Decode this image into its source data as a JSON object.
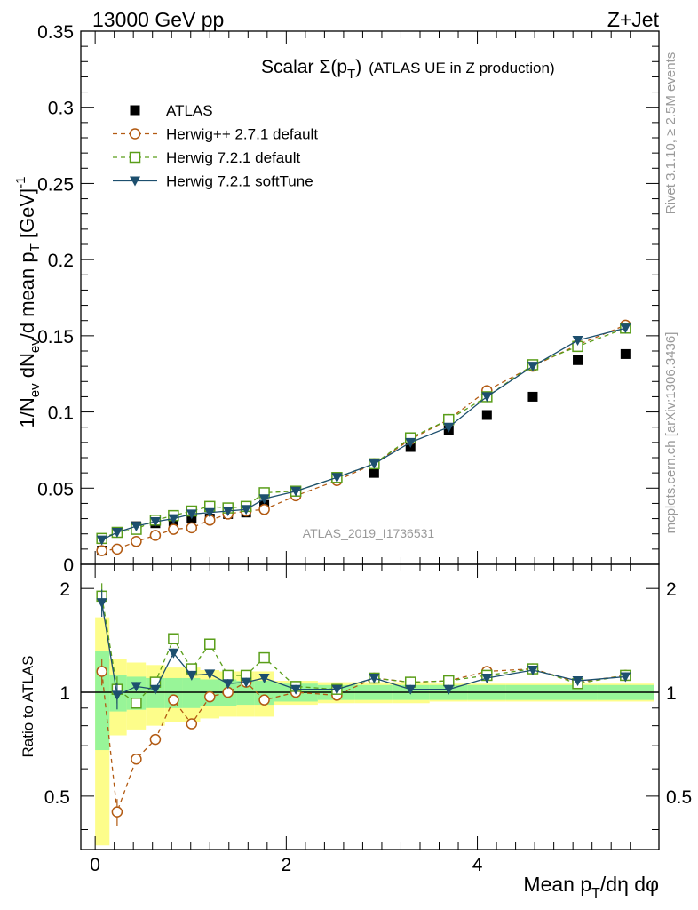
{
  "header": {
    "energy_label": "13000 GeV pp",
    "process_label": "Z+Jet"
  },
  "side_labels": {
    "rivet": "Rivet 3.1.10, ≥ 2.5M events",
    "mcplots": "mcplots.cern.ch [arXiv:1306.3436]"
  },
  "analysis_id": "ATLAS_2019_I1736531",
  "chart_data": {
    "type": "scatter",
    "title": "Scalar Σ(p_T) (ATLAS UE in Z production)",
    "xlabel": "Mean p_T/dη dφ",
    "ylabel": "1/N_ev dN_ev/d mean p_T [GeV]^-1",
    "ratio_ylabel": "Ratio to ATLAS",
    "xlim": [
      -0.15,
      5.9
    ],
    "ylim": [
      0,
      0.35
    ],
    "ratio_ylim": [
      0.35,
      2.35
    ],
    "x_ticks": [
      0,
      2,
      4
    ],
    "y_ticks": [
      0,
      0.05,
      0.1,
      0.15,
      0.2,
      0.25,
      0.3,
      0.35
    ],
    "y_tick_labels": [
      "0",
      "0.05",
      "0.1",
      "0.15",
      "0.2",
      "0.25",
      "0.3",
      "0.35"
    ],
    "ratio_ticks": [
      0.5,
      1,
      2
    ],
    "ratio_tick_labels": [
      "0.5",
      "1",
      "2"
    ],
    "legend_position": "top-left",
    "x": [
      0.07,
      0.23,
      0.43,
      0.63,
      0.82,
      1.01,
      1.2,
      1.39,
      1.58,
      1.77,
      2.1,
      2.53,
      2.92,
      3.3,
      3.7,
      4.1,
      4.58,
      5.05,
      5.55
    ],
    "series": [
      {
        "name": "ATLAS",
        "style": "data",
        "color": "#000000",
        "values": [
          0.009,
          0.021,
          0.025,
          0.027,
          0.028,
          0.03,
          0.03,
          0.033,
          0.034,
          0.039,
          0.046,
          0.057,
          0.06,
          0.077,
          0.088,
          0.098,
          0.11,
          0.134,
          0.138
        ],
        "ratio": [
          1,
          1,
          1,
          1,
          1,
          1,
          1,
          1,
          1,
          1,
          1,
          1,
          1,
          1,
          1,
          1,
          1,
          1,
          1
        ]
      },
      {
        "name": "Herwig++ 2.7.1 default",
        "style": "circle-dashed",
        "color": "#b25a12",
        "values": [
          0.009,
          0.01,
          0.015,
          0.019,
          0.023,
          0.024,
          0.029,
          0.033,
          0.035,
          0.036,
          0.045,
          0.055,
          0.066,
          0.082,
          0.095,
          0.114,
          0.13,
          0.144,
          0.157
        ],
        "ratio": [
          1.15,
          0.45,
          0.64,
          0.73,
          0.95,
          0.81,
          0.97,
          1.0,
          1.07,
          0.95,
          1.0,
          0.98,
          1.1,
          1.07,
          1.08,
          1.15,
          1.17,
          1.07,
          1.12
        ]
      },
      {
        "name": "Herwig 7.2.1 default",
        "style": "square-dashed",
        "color": "#5a9e1a",
        "values": [
          0.017,
          0.021,
          0.023,
          0.029,
          0.032,
          0.035,
          0.038,
          0.037,
          0.038,
          0.047,
          0.048,
          0.057,
          0.066,
          0.083,
          0.095,
          0.11,
          0.131,
          0.143,
          0.155
        ],
        "ratio": [
          1.9,
          1.02,
          0.93,
          1.07,
          1.43,
          1.17,
          1.38,
          1.12,
          1.12,
          1.26,
          1.04,
          1.02,
          1.1,
          1.07,
          1.08,
          1.12,
          1.17,
          1.06,
          1.12
        ]
      },
      {
        "name": "Herwig 7.2.1 softTune",
        "style": "triangle-solid",
        "color": "#1d4f6e",
        "values": [
          0.016,
          0.021,
          0.025,
          0.028,
          0.03,
          0.033,
          0.034,
          0.035,
          0.036,
          0.043,
          0.048,
          0.057,
          0.066,
          0.08,
          0.09,
          0.11,
          0.13,
          0.147,
          0.155
        ],
        "ratio": [
          1.82,
          0.98,
          1.04,
          1.02,
          1.3,
          1.12,
          1.13,
          1.06,
          1.07,
          1.1,
          1.02,
          1.02,
          1.1,
          1.02,
          1.02,
          1.1,
          1.16,
          1.08,
          1.11
        ]
      }
    ],
    "ratio_bands": {
      "x_edges": [
        0,
        0.15,
        0.33,
        0.53,
        0.73,
        0.91,
        1.1,
        1.3,
        1.48,
        1.67,
        1.87,
        2.33,
        2.72,
        3.11,
        3.5,
        3.9,
        4.3,
        4.85,
        5.25,
        5.85
      ],
      "inner_half_width": [
        0.32,
        0.12,
        0.11,
        0.1,
        0.1,
        0.1,
        0.09,
        0.09,
        0.08,
        0.08,
        0.06,
        0.05,
        0.05,
        0.05,
        0.05,
        0.05,
        0.05,
        0.05,
        0.05
      ],
      "outer_half_width": [
        0.65,
        0.25,
        0.22,
        0.2,
        0.18,
        0.18,
        0.16,
        0.15,
        0.15,
        0.15,
        0.08,
        0.07,
        0.07,
        0.07,
        0.06,
        0.06,
        0.06,
        0.06,
        0.06
      ],
      "inner_color": "#98f598",
      "outer_color": "#fdfd8a"
    }
  }
}
